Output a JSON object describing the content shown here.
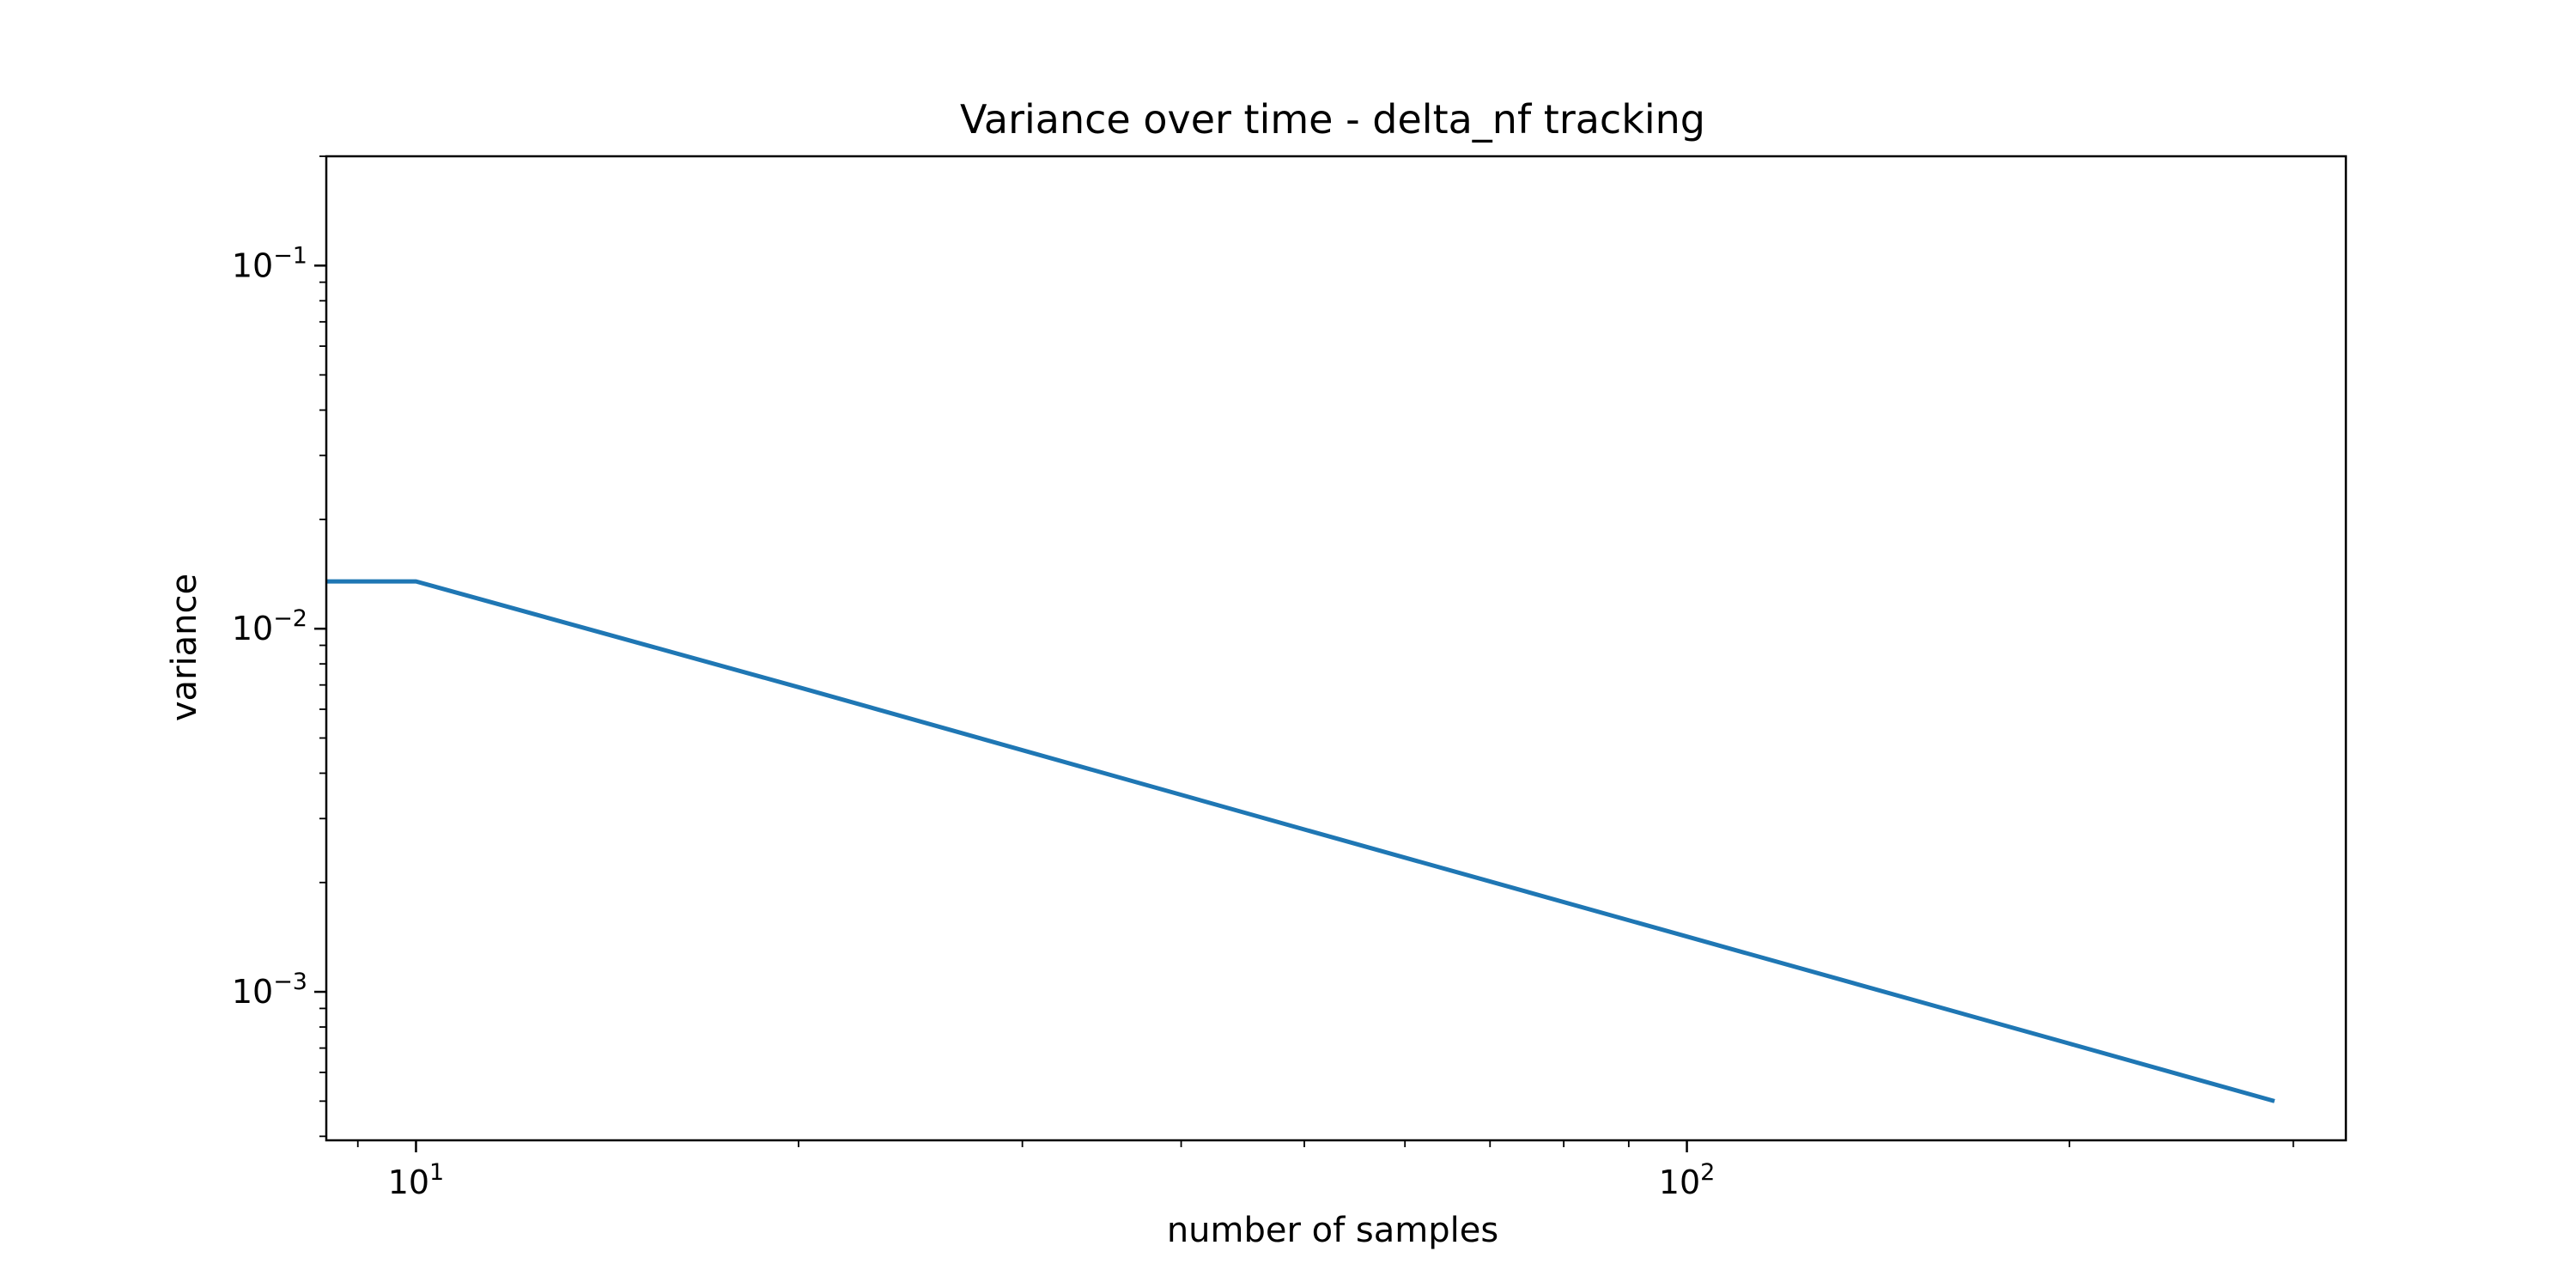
{
  "chart_data": {
    "type": "line",
    "title": "Variance over time - delta_nf tracking",
    "xlabel": "number of samples",
    "ylabel": "variance",
    "xscale": "log",
    "yscale": "log",
    "xlim": [
      8.5,
      330
    ],
    "ylim": [
      0.00039,
      0.2
    ],
    "grid": false,
    "legend": "none",
    "x_ticks": [
      {
        "value": 10,
        "base": "10",
        "exp": "1"
      },
      {
        "value": 100,
        "base": "10",
        "exp": "2"
      }
    ],
    "y_ticks": [
      {
        "value": 0.1,
        "base": "10",
        "exp": "−1"
      },
      {
        "value": 0.01,
        "base": "10",
        "exp": "−2"
      },
      {
        "value": 0.001,
        "base": "10",
        "exp": "−3"
      }
    ],
    "series": [
      {
        "color": "#1f77b4",
        "x": [
          8.5,
          10,
          20,
          50,
          100,
          200,
          290
        ],
        "y": [
          0.0135,
          0.0135,
          0.0069,
          0.0028,
          0.00142,
          0.00072,
          0.0005
        ]
      }
    ]
  }
}
